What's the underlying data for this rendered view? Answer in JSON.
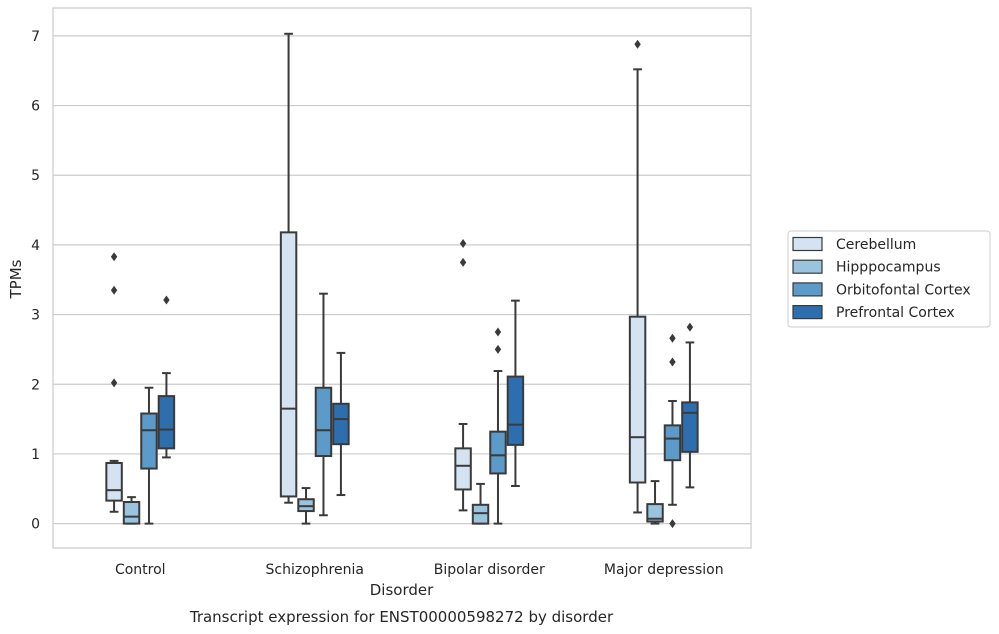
{
  "caption": "Transcript expression for ENST00000598272 by disorder",
  "chart_data": {
    "type": "box",
    "xlabel": "Disorder",
    "ylabel": "TPMs",
    "ylim": [
      -0.35,
      7.4
    ],
    "yticks": [
      0,
      1,
      2,
      3,
      4,
      5,
      6,
      7
    ],
    "grid": true,
    "legend_position": "right",
    "categories": [
      "Control",
      "Schizophrenia",
      "Bipolar disorder",
      "Major depression"
    ],
    "series": [
      {
        "name": "Cerebellum",
        "color": "#d4e3f1",
        "boxes": [
          {
            "whislo": 0.17,
            "q1": 0.33,
            "med": 0.48,
            "q3": 0.87,
            "whishi": 0.9,
            "fliers": [
              2.02,
              3.35,
              3.83
            ]
          },
          {
            "whislo": 0.3,
            "q1": 0.39,
            "med": 1.65,
            "q3": 4.18,
            "whishi": 7.03,
            "fliers": []
          },
          {
            "whislo": 0.19,
            "q1": 0.49,
            "med": 0.83,
            "q3": 1.08,
            "whishi": 1.43,
            "fliers": [
              3.75,
              4.02
            ]
          },
          {
            "whislo": 0.16,
            "q1": 0.59,
            "med": 1.24,
            "q3": 2.97,
            "whishi": 6.52,
            "fliers": [
              6.88
            ]
          }
        ]
      },
      {
        "name": "Hipppocampus",
        "color": "#9ac4dd",
        "boxes": [
          {
            "whislo": 0.0,
            "q1": 0.0,
            "med": 0.1,
            "q3": 0.31,
            "whishi": 0.38,
            "fliers": []
          },
          {
            "whislo": 0.0,
            "q1": 0.18,
            "med": 0.25,
            "q3": 0.35,
            "whishi": 0.51,
            "fliers": []
          },
          {
            "whislo": 0.0,
            "q1": 0.0,
            "med": 0.15,
            "q3": 0.27,
            "whishi": 0.57,
            "fliers": []
          },
          {
            "whislo": 0.0,
            "q1": 0.03,
            "med": 0.07,
            "q3": 0.28,
            "whishi": 0.61,
            "fliers": []
          }
        ]
      },
      {
        "name": "Orbitofontal Cortex",
        "color": "#5b9ac9",
        "boxes": [
          {
            "whislo": 0.0,
            "q1": 0.79,
            "med": 1.34,
            "q3": 1.58,
            "whishi": 1.95,
            "fliers": []
          },
          {
            "whislo": 0.12,
            "q1": 0.97,
            "med": 1.34,
            "q3": 1.95,
            "whishi": 3.3,
            "fliers": []
          },
          {
            "whislo": 0.0,
            "q1": 0.72,
            "med": 0.98,
            "q3": 1.32,
            "whishi": 2.19,
            "fliers": [
              2.5,
              2.75
            ]
          },
          {
            "whislo": 0.27,
            "q1": 0.91,
            "med": 1.22,
            "q3": 1.41,
            "whishi": 1.76,
            "fliers": [
              0.0,
              2.32,
              2.66
            ]
          }
        ]
      },
      {
        "name": "Prefrontal Cortex",
        "color": "#2d6fae",
        "boxes": [
          {
            "whislo": 0.95,
            "q1": 1.08,
            "med": 1.35,
            "q3": 1.83,
            "whishi": 2.16,
            "fliers": [
              3.21
            ]
          },
          {
            "whislo": 0.41,
            "q1": 1.14,
            "med": 1.5,
            "q3": 1.72,
            "whishi": 2.45,
            "fliers": []
          },
          {
            "whislo": 0.54,
            "q1": 1.13,
            "med": 1.42,
            "q3": 2.11,
            "whishi": 3.2,
            "fliers": []
          },
          {
            "whislo": 0.52,
            "q1": 1.03,
            "med": 1.59,
            "q3": 1.74,
            "whishi": 2.6,
            "fliers": [
              2.82
            ]
          }
        ]
      }
    ]
  }
}
